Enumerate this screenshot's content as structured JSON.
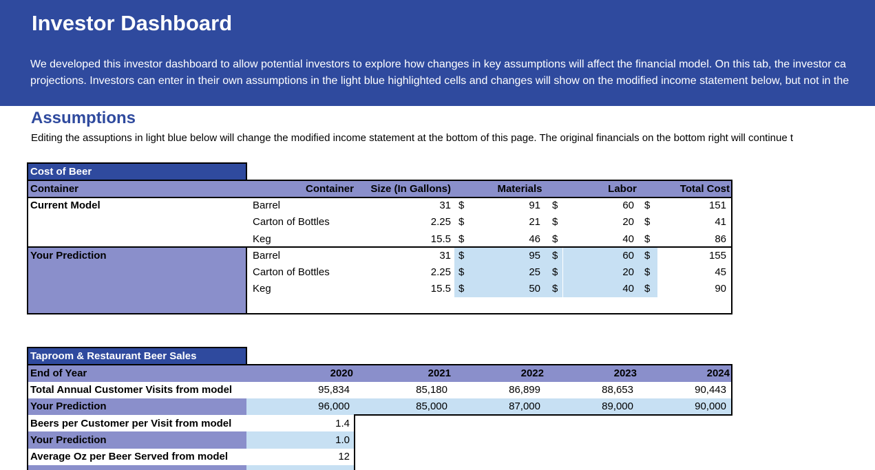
{
  "header": {
    "title": "Investor Dashboard",
    "description_line1": "We developed this investor dashboard to allow potential investors to explore how changes in key assumptions will affect the financial model. On this tab, the investor ca",
    "description_line2": "projections.  Investors can enter in their own assumptions in the light blue highlighted cells and changes will show on the modified income statement below, but not in the"
  },
  "assumptions": {
    "title": "Assumptions",
    "description": "Editing the assuptions in light blue below will change the modified income statement at the bottom of this page. The original financials on the bottom right will continue t"
  },
  "cost_of_beer": {
    "title": "Cost of Beer",
    "columns": {
      "row_label": "Container",
      "container": "Container",
      "size": "Size (In Gallons)",
      "materials": "Materials",
      "labor": "Labor",
      "total": "Total Cost"
    },
    "currency": "$",
    "current_label": "Current Model",
    "prediction_label": "Your Prediction",
    "current_rows": [
      {
        "container": "Barrel",
        "size": "31",
        "materials": "91",
        "labor": "60",
        "total": "151"
      },
      {
        "container": "Carton of Bottles",
        "size": "2.25",
        "materials": "21",
        "labor": "20",
        "total": "41"
      },
      {
        "container": "Keg",
        "size": "15.5",
        "materials": "46",
        "labor": "40",
        "total": "86"
      }
    ],
    "prediction_rows": [
      {
        "container": "Barrel",
        "size": "31",
        "materials": "95",
        "labor": "60",
        "total": "155"
      },
      {
        "container": "Carton of Bottles",
        "size": "2.25",
        "materials": "25",
        "labor": "20",
        "total": "45"
      },
      {
        "container": "Keg",
        "size": "15.5",
        "materials": "50",
        "labor": "40",
        "total": "90"
      }
    ]
  },
  "taproom_sales": {
    "title": "Taproom & Restaurant Beer Sales",
    "header_label": "End of Year",
    "years": [
      "2020",
      "2021",
      "2022",
      "2023",
      "2024"
    ],
    "visits_label": "Total Annual Customer Visits from model",
    "visits": [
      "95,834",
      "85,180",
      "86,899",
      "88,653",
      "90,443"
    ],
    "visits_prediction_label": "Your Prediction",
    "visits_prediction": [
      "96,000",
      "85,000",
      "87,000",
      "89,000",
      "90,000"
    ],
    "beers_label": "Beers per Customer per Visit from model",
    "beers_value": "1.4",
    "beers_prediction_label": "Your Prediction",
    "beers_prediction": "1.0",
    "oz_label": "Average Oz per Beer Served from model",
    "oz_value": "12"
  }
}
